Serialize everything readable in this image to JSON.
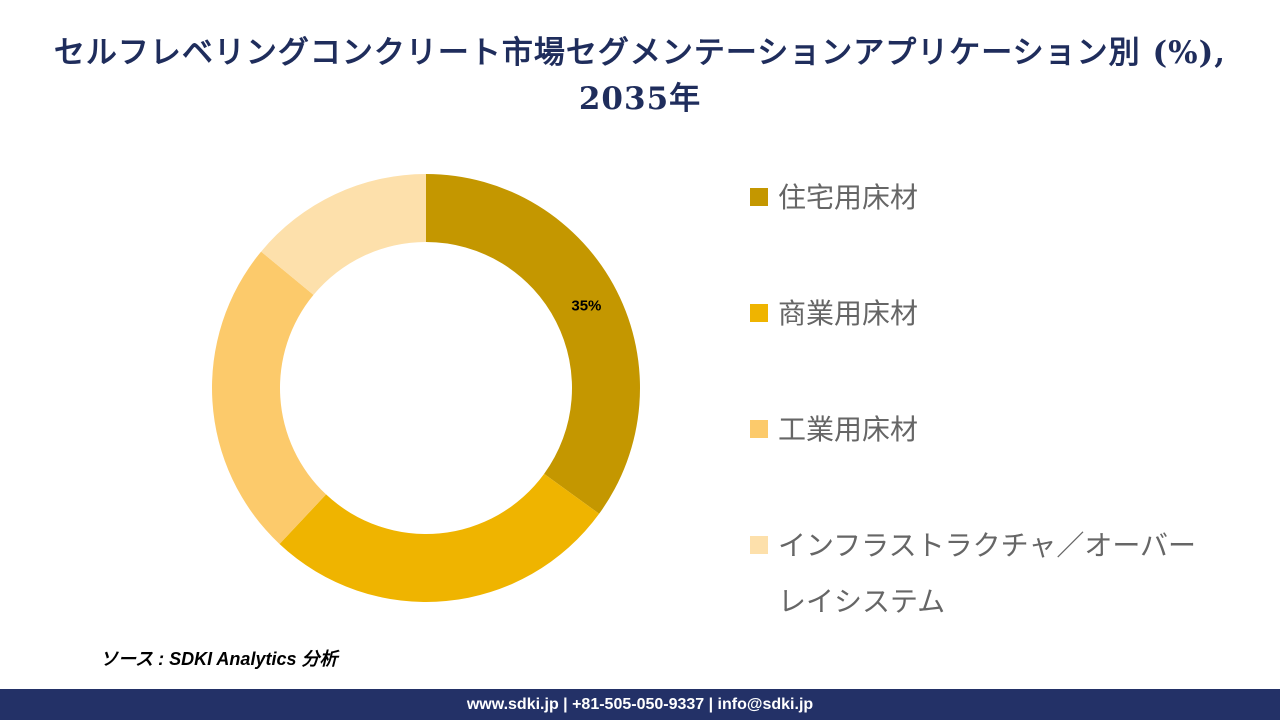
{
  "title": "セルフレベリングコンクリート市場セグメンテーションアプリケーション別 (%), 2035年",
  "chart_data": {
    "type": "pie",
    "variant": "donut",
    "categories": [
      "住宅用床材",
      "商業用床材",
      "工業用床材",
      "インフラストラクチャ／オーバーレイシステム"
    ],
    "values": [
      35,
      27,
      24,
      14
    ],
    "data_labels": [
      "35%",
      "",
      "",
      ""
    ],
    "colors": [
      "#c49700",
      "#efb400",
      "#fcca6b",
      "#fde0ab"
    ],
    "legend_position": "right"
  },
  "legend": {
    "items": [
      {
        "label": "住宅用床材",
        "color": "#c49700"
      },
      {
        "label": "商業用床材",
        "color": "#efb400"
      },
      {
        "label": "工業用床材",
        "color": "#fcca6b"
      },
      {
        "label": "インフラストラクチャ／オーバーレイシステム",
        "color": "#fde0ab"
      }
    ]
  },
  "source": "ソース : SDKI Analytics 分析",
  "footer": "www.sdki.jp | +81-505-050-9337 | info@sdki.jp"
}
